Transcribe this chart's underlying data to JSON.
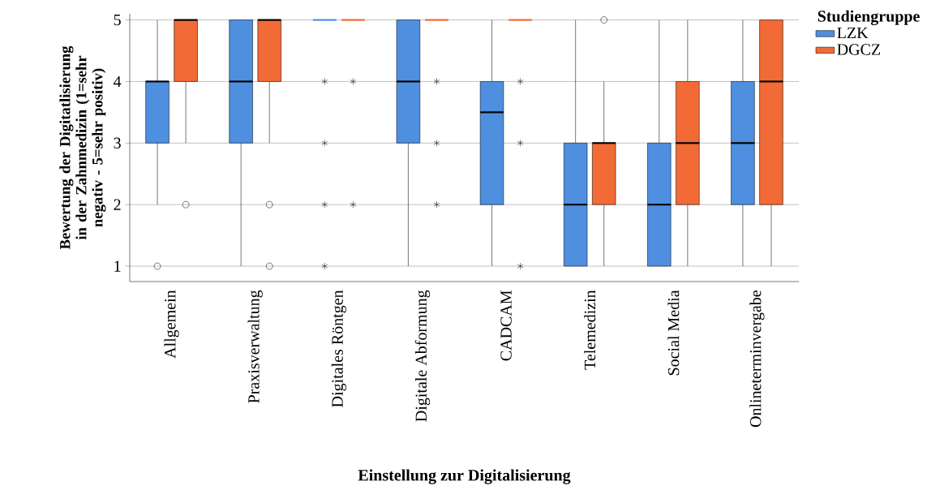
{
  "chart_data": {
    "type": "box",
    "xlabel": "Einstellung zur Digitalisierung",
    "ylabel": "Bewertung der Digitatlisierung in der Zahnmedizin (1=sehr negativ - 5=sehr positiv)",
    "legend_title": "Studiengruppe",
    "categories": [
      "Allgemein",
      "Praxisverwaltung",
      "Digitales Röntgen",
      "Digitale Abformung",
      "CADCAM",
      "Telemedizin",
      "Social Media",
      "Onlineterminvergabe"
    ],
    "series": [
      {
        "name": "LZK",
        "color": "#4f8fe0",
        "boxes": [
          {
            "low": 2,
            "q1": 3,
            "median": 4,
            "q3": 4,
            "high": 5,
            "outliers": [
              1
            ]
          },
          {
            "low": 1,
            "q1": 3,
            "median": 4,
            "q3": 5,
            "high": 5
          },
          {
            "low": 5,
            "q1": 5,
            "median": 5,
            "q3": 5,
            "high": 5,
            "outliers": [
              4,
              3,
              2,
              1
            ]
          },
          {
            "low": 1,
            "q1": 3,
            "median": 4,
            "q3": 5,
            "high": 5
          },
          {
            "low": 1,
            "q1": 2,
            "median": 3.5,
            "q3": 4,
            "high": 5
          },
          {
            "low": 1,
            "q1": 1,
            "median": 2,
            "q3": 3,
            "high": 5
          },
          {
            "low": 1,
            "q1": 1,
            "median": 2,
            "q3": 3,
            "high": 5
          },
          {
            "low": 1,
            "q1": 2,
            "median": 3,
            "q3": 4,
            "high": 5
          }
        ]
      },
      {
        "name": "DGCZ",
        "color": "#f26a35",
        "boxes": [
          {
            "low": 3,
            "q1": 4,
            "median": 5,
            "q3": 5,
            "high": 5,
            "outliers": [
              2
            ]
          },
          {
            "low": 3,
            "q1": 4,
            "median": 5,
            "q3": 5,
            "high": 5,
            "outliers": [
              2,
              1
            ]
          },
          {
            "low": 5,
            "q1": 5,
            "median": 5,
            "q3": 5,
            "high": 5,
            "outliers": [
              4,
              2
            ]
          },
          {
            "low": 5,
            "q1": 5,
            "median": 5,
            "q3": 5,
            "high": 5,
            "outliers": [
              4,
              3,
              2
            ]
          },
          {
            "low": 5,
            "q1": 5,
            "median": 5,
            "q3": 5,
            "high": 5,
            "outliers": [
              4,
              3,
              1
            ]
          },
          {
            "low": 1,
            "q1": 2,
            "median": 3,
            "q3": 3,
            "high": 4,
            "outliers": [
              5
            ]
          },
          {
            "low": 1,
            "q1": 2,
            "median": 3,
            "q3": 4,
            "high": 5
          },
          {
            "low": 1,
            "q1": 2,
            "median": 4,
            "q3": 5,
            "high": 5
          }
        ]
      }
    ],
    "ylim": [
      0.75,
      5.1
    ],
    "yticks": [
      1,
      2,
      3,
      4,
      5
    ],
    "grid": "y",
    "legend": "top right"
  }
}
